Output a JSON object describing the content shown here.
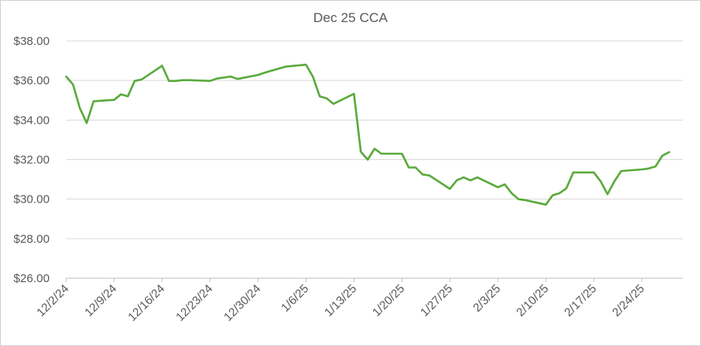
{
  "chart_data": {
    "type": "line",
    "title": "Dec 25 CCA",
    "xlabel": "",
    "ylabel": "",
    "ylim": [
      26,
      38
    ],
    "y_tick_values": [
      26,
      28,
      30,
      32,
      34,
      36,
      38
    ],
    "y_tick_labels": [
      "$26.00",
      "$28.00",
      "$30.00",
      "$32.00",
      "$34.00",
      "$36.00",
      "$38.00"
    ],
    "x_tick_labels": [
      "12/2/24",
      "12/9/24",
      "12/16/24",
      "12/23/24",
      "12/30/24",
      "1/6/25",
      "1/13/25",
      "1/20/25",
      "1/27/25",
      "2/3/25",
      "2/10/25",
      "2/17/25",
      "2/24/25"
    ],
    "x_tick_dates": [
      "2024-12-02",
      "2024-12-09",
      "2024-12-16",
      "2024-12-23",
      "2024-12-30",
      "2025-01-06",
      "2025-01-13",
      "2025-01-20",
      "2025-01-27",
      "2025-02-03",
      "2025-02-10",
      "2025-02-17",
      "2025-02-24"
    ],
    "xlim": [
      "2024-12-02",
      "2025-03-02"
    ],
    "grid": true,
    "legend": "none",
    "line_color": "#5aaa3c",
    "series": [
      {
        "x": [
          "2024-12-02",
          "2024-12-03",
          "2024-12-04",
          "2024-12-05",
          "2024-12-06",
          "2024-12-09",
          "2024-12-10",
          "2024-12-11",
          "2024-12-12",
          "2024-12-13",
          "2024-12-16",
          "2024-12-17",
          "2024-12-18",
          "2024-12-19",
          "2024-12-20",
          "2024-12-23",
          "2024-12-24",
          "2024-12-26",
          "2024-12-27",
          "2024-12-30",
          "2024-12-31",
          "2025-01-02",
          "2025-01-03",
          "2025-01-06",
          "2025-01-07",
          "2025-01-08",
          "2025-01-09",
          "2025-01-10",
          "2025-01-13",
          "2025-01-14",
          "2025-01-15",
          "2025-01-16",
          "2025-01-17",
          "2025-01-20",
          "2025-01-21",
          "2025-01-22",
          "2025-01-23",
          "2025-01-24",
          "2025-01-27",
          "2025-01-28",
          "2025-01-29",
          "2025-01-30",
          "2025-01-31",
          "2025-02-03",
          "2025-02-04",
          "2025-02-05",
          "2025-02-06",
          "2025-02-07",
          "2025-02-10",
          "2025-02-11",
          "2025-02-12",
          "2025-02-13",
          "2025-02-14",
          "2025-02-17",
          "2025-02-18",
          "2025-02-19",
          "2025-02-20",
          "2025-02-21",
          "2025-02-24",
          "2025-02-25",
          "2025-02-26",
          "2025-02-27",
          "2025-02-28"
        ],
        "values": [
          36.2,
          35.8,
          34.6,
          33.85,
          34.95,
          35.02,
          35.3,
          35.2,
          35.98,
          36.05,
          36.75,
          35.98,
          35.98,
          36.02,
          36.02,
          35.98,
          36.1,
          36.2,
          36.08,
          36.28,
          36.4,
          36.6,
          36.7,
          36.8,
          36.2,
          35.2,
          35.1,
          34.82,
          35.33,
          32.4,
          32.0,
          32.55,
          32.3,
          32.3,
          31.6,
          31.6,
          31.25,
          31.2,
          30.52,
          30.95,
          31.1,
          30.95,
          31.1,
          30.6,
          30.75,
          30.3,
          30.0,
          29.95,
          29.72,
          30.2,
          30.3,
          30.55,
          31.35,
          31.35,
          30.9,
          30.25,
          30.9,
          31.42,
          31.5,
          31.55,
          31.65,
          32.2,
          32.38
        ]
      }
    ]
  }
}
